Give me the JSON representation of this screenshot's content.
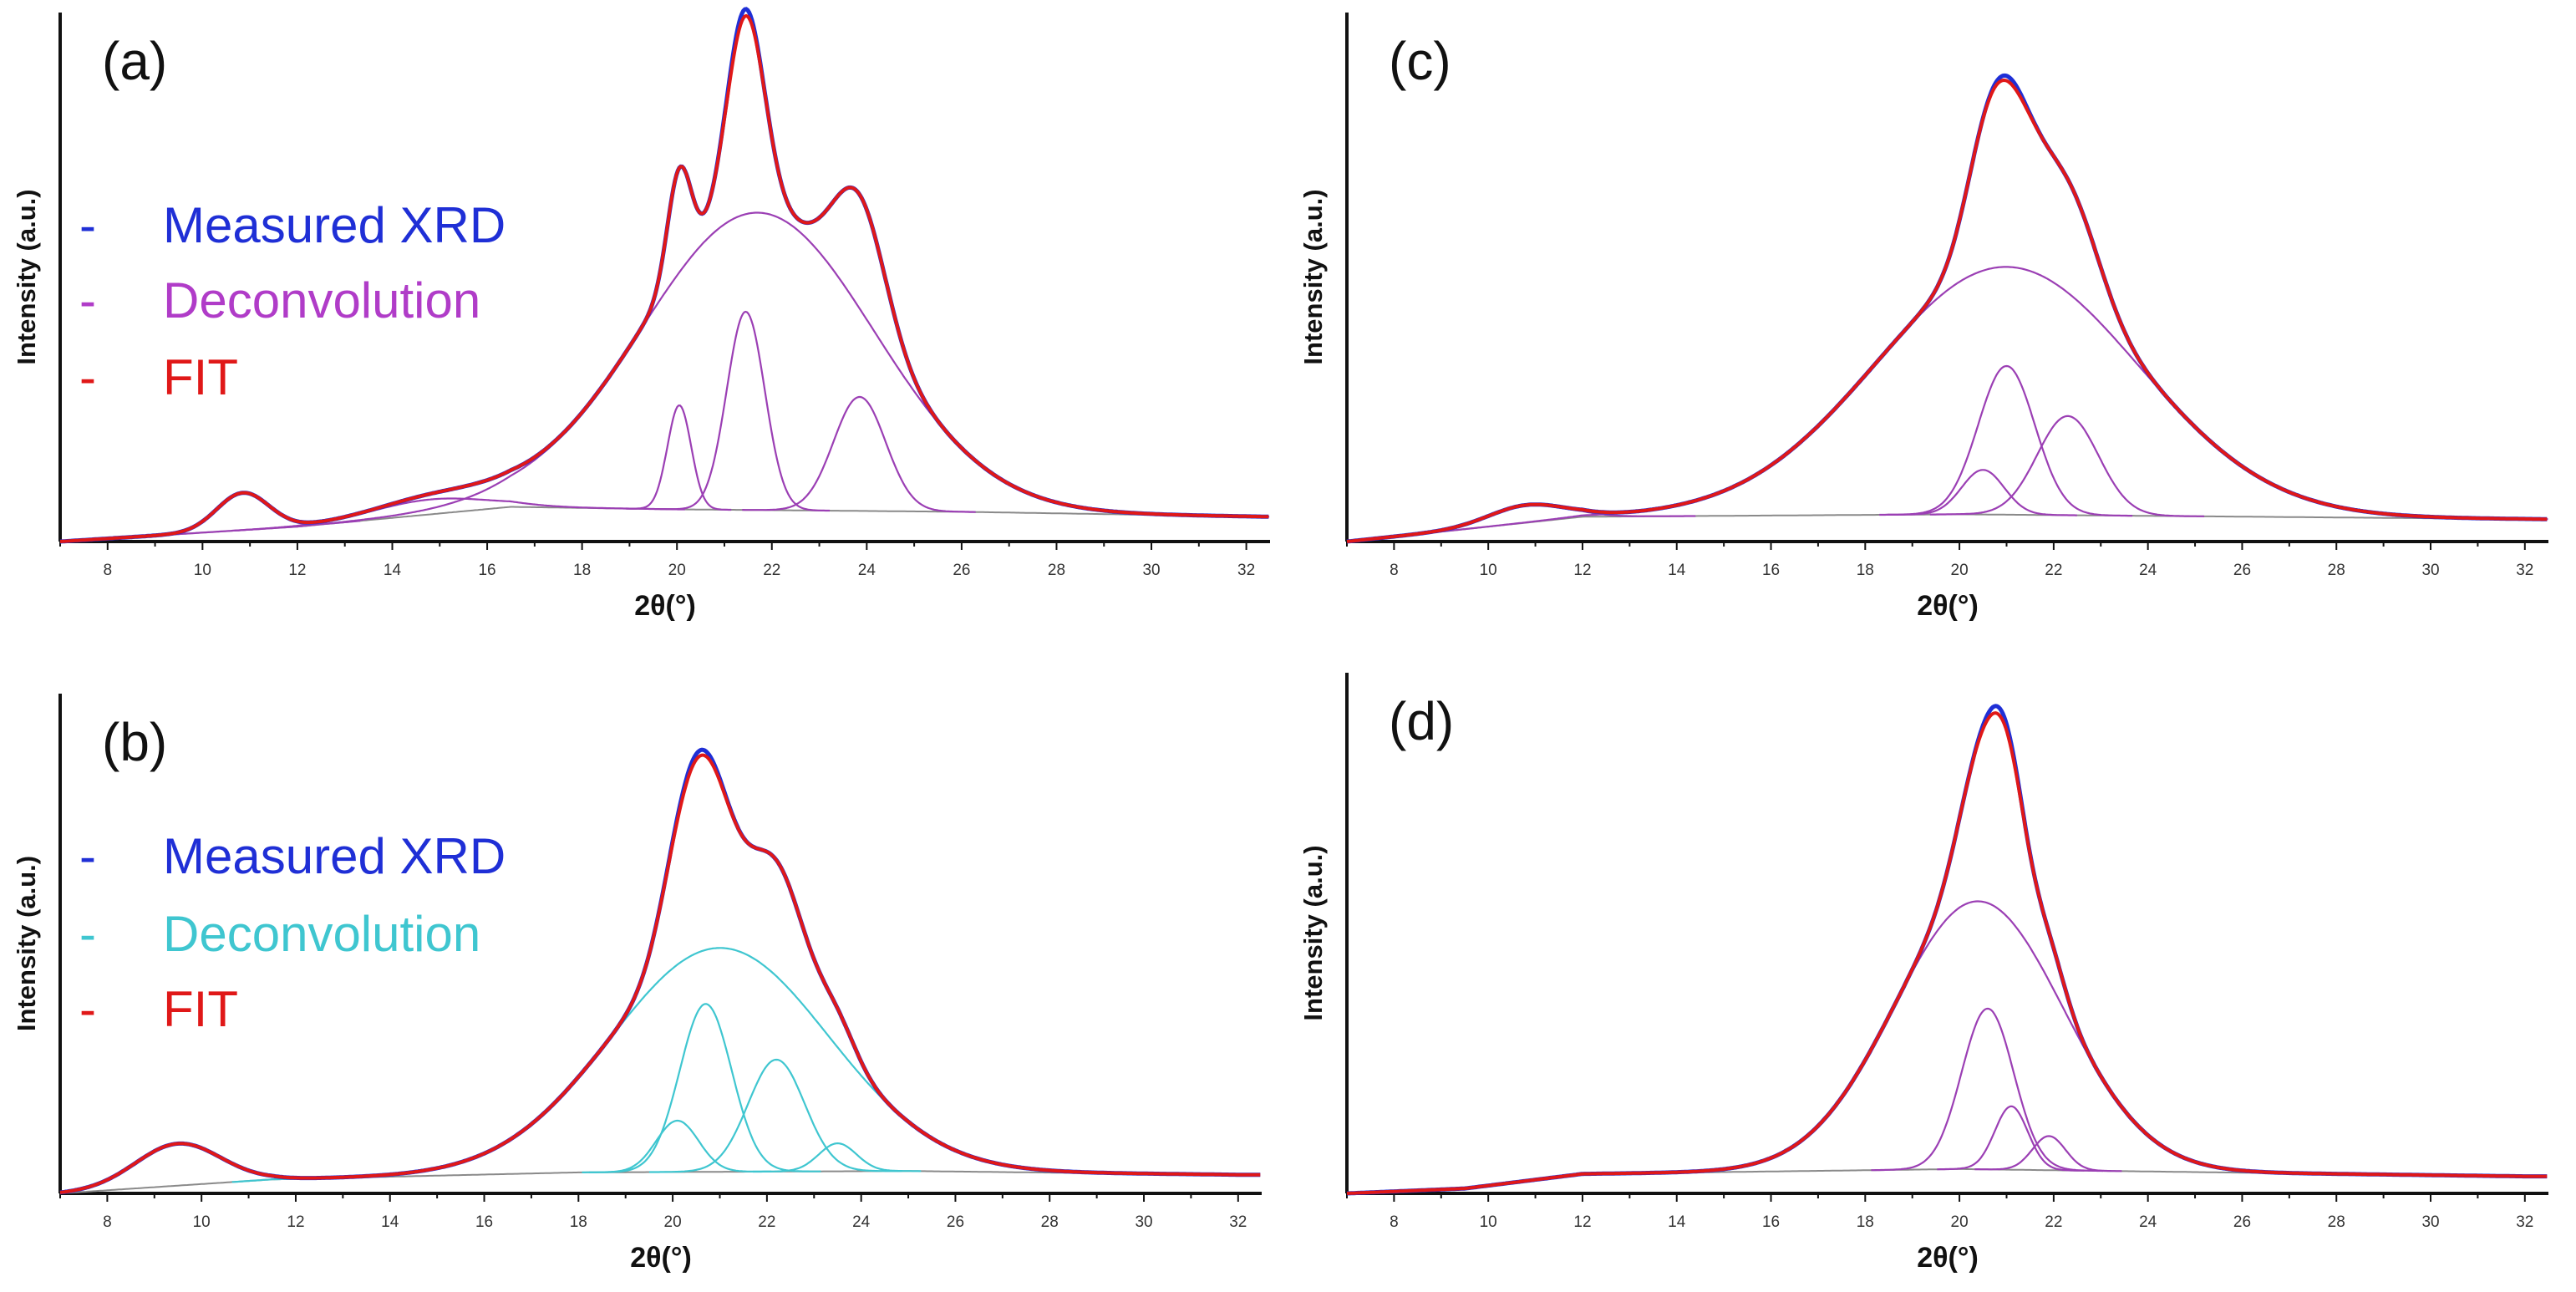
{
  "colors": {
    "measured": "#1f2fd6",
    "fit": "#e01818",
    "deconv_purple": "#9b3fb4",
    "deconv_cyan": "#3fc6d0",
    "baseline": "#8a8a8a"
  },
  "chart_data": [
    {
      "type": "line",
      "panel": "(a)",
      "xlabel": "2θ(°)",
      "ylabel": "Intensity (a.u.)",
      "xlim": [
        7,
        32.5
      ],
      "ylim": [
        0,
        1
      ],
      "xticks": [
        8,
        10,
        12,
        14,
        16,
        18,
        20,
        22,
        24,
        26,
        28,
        30,
        32
      ],
      "legend": [
        {
          "dash": "-",
          "label": "Measured XRD",
          "color": "#1f2fd6"
        },
        {
          "dash": "-",
          "label": "Deconvolution",
          "color": "#b03cc8"
        },
        {
          "dash": "-",
          "label": "FIT",
          "color": "#e01818"
        }
      ],
      "deconv_color": "#9b3fb4",
      "baseline": {
        "x": [
          7,
          12,
          16.5,
          20,
          26,
          32.5
        ],
        "y": [
          0.0,
          0.03,
          0.07,
          0.065,
          0.06,
          0.05
        ]
      },
      "peaks": [
        {
          "center": 10.85,
          "height": 0.075,
          "width": 0.55
        },
        {
          "center": 14.8,
          "height": 0.03,
          "width": 1.2
        },
        {
          "center": 21.7,
          "height": 0.6,
          "width": 2.45
        },
        {
          "center": 20.05,
          "height": 0.21,
          "width": 0.25
        },
        {
          "center": 21.45,
          "height": 0.4,
          "width": 0.4
        },
        {
          "center": 23.85,
          "height": 0.23,
          "width": 0.55
        }
      ],
      "measured_offsets": [
        {
          "center": 21.35,
          "height": 0.015,
          "width": 0.25
        }
      ]
    },
    {
      "type": "line",
      "panel": "(b)",
      "xlabel": "2θ(°)",
      "ylabel": "Intensity (a.u.)",
      "xlim": [
        7,
        32.5
      ],
      "ylim": [
        0,
        1
      ],
      "xticks": [
        8,
        10,
        12,
        14,
        16,
        18,
        20,
        22,
        24,
        26,
        28,
        30,
        32
      ],
      "legend": [
        {
          "dash": "-",
          "label": "Measured XRD",
          "color": "#1f2fd6"
        },
        {
          "dash": "-",
          "label": "Deconvolution",
          "color": "#3fc6d0"
        },
        {
          "dash": "-",
          "label": "FIT",
          "color": "#e01818"
        }
      ],
      "deconv_color": "#3fc6d0",
      "baseline": {
        "x": [
          7,
          11.5,
          18,
          25,
          32
        ],
        "y": [
          0.0,
          0.03,
          0.045,
          0.048,
          0.04
        ]
      },
      "peaks": [
        {
          "center": 9.5,
          "height": 0.09,
          "width": 0.9
        },
        {
          "center": 21.0,
          "height": 0.48,
          "width": 2.3
        },
        {
          "center": 20.7,
          "height": 0.36,
          "width": 0.55
        },
        {
          "center": 20.1,
          "height": 0.11,
          "width": 0.45
        },
        {
          "center": 22.2,
          "height": 0.24,
          "width": 0.6
        },
        {
          "center": 23.5,
          "height": 0.06,
          "width": 0.4
        }
      ],
      "measured_offsets": [
        {
          "center": 20.5,
          "height": 0.012,
          "width": 0.4
        }
      ]
    },
    {
      "type": "line",
      "panel": "(c)",
      "xlabel": "2θ(°)",
      "ylabel": "Intensity (a.u.)",
      "xlim": [
        7,
        32.5
      ],
      "ylim": [
        0,
        1
      ],
      "xticks": [
        8,
        10,
        12,
        14,
        16,
        18,
        20,
        22,
        24,
        26,
        28,
        30,
        32
      ],
      "legend": [],
      "deconv_color": "#9b3fb4",
      "baseline": {
        "x": [
          7,
          9,
          12,
          20,
          32.5
        ],
        "y": [
          0.0,
          0.02,
          0.05,
          0.055,
          0.045
        ]
      },
      "peaks": [
        {
          "center": 10.8,
          "height": 0.035,
          "width": 0.8
        },
        {
          "center": 21.0,
          "height": 0.5,
          "width": 2.8
        },
        {
          "center": 21.0,
          "height": 0.3,
          "width": 0.6
        },
        {
          "center": 20.5,
          "height": 0.09,
          "width": 0.45
        },
        {
          "center": 22.3,
          "height": 0.2,
          "width": 0.65
        }
      ],
      "measured_offsets": [
        {
          "center": 21.05,
          "height": 0.01,
          "width": 0.3
        }
      ]
    },
    {
      "type": "line",
      "panel": "(d)",
      "xlabel": "2θ(°)",
      "ylabel": "Intensity (a.u.)",
      "xlim": [
        7,
        32.5
      ],
      "ylim": [
        0,
        1
      ],
      "xticks": [
        8,
        10,
        12,
        14,
        16,
        18,
        20,
        22,
        24,
        26,
        28,
        30,
        32
      ],
      "legend": [],
      "deconv_color": "#9b3fb4",
      "baseline": {
        "x": [
          7,
          9.5,
          12,
          20,
          32
        ],
        "y": [
          0.0,
          0.01,
          0.04,
          0.05,
          0.035
        ]
      },
      "peaks": [
        {
          "center": 20.4,
          "height": 0.55,
          "width": 1.8
        },
        {
          "center": 20.6,
          "height": 0.33,
          "width": 0.55
        },
        {
          "center": 21.1,
          "height": 0.13,
          "width": 0.35
        },
        {
          "center": 21.9,
          "height": 0.07,
          "width": 0.35
        }
      ],
      "measured_offsets": [
        {
          "center": 20.85,
          "height": 0.015,
          "width": 0.3
        }
      ]
    }
  ]
}
